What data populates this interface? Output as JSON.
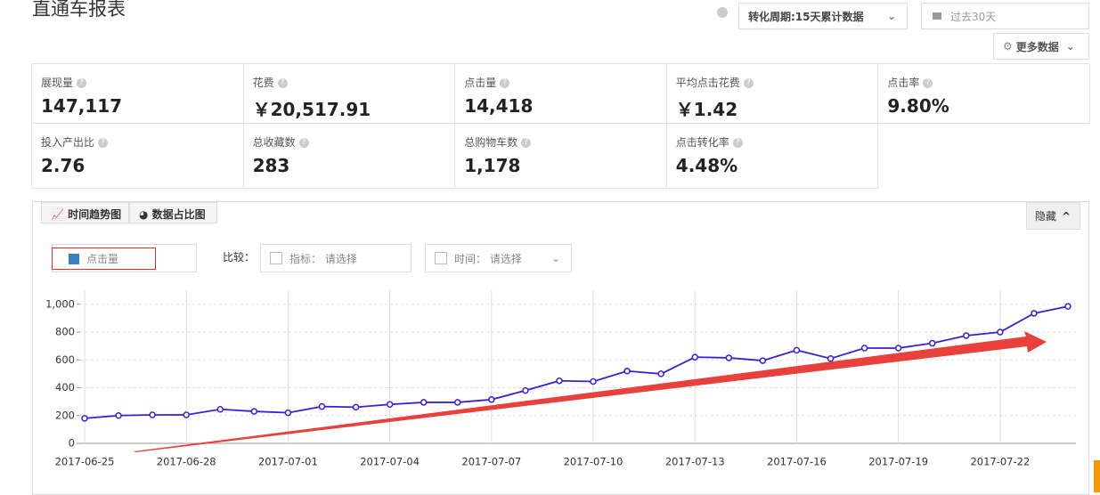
{
  "header": {
    "title": "直通车报表",
    "conversion_period": "转化周期:15天累计数据",
    "date_range": "过去30天",
    "more_data": "更多数据"
  },
  "metrics": [
    {
      "label": "展现量",
      "value": "147,117"
    },
    {
      "label": "花费",
      "value": "￥20,517.91"
    },
    {
      "label": "点击量",
      "value": "14,418"
    },
    {
      "label": "平均点击花费",
      "value": "￥1.42"
    },
    {
      "label": "点击率",
      "value": "9.80%"
    },
    {
      "label": "投入产出比",
      "value": "2.76"
    },
    {
      "label": "总收藏数",
      "value": "283"
    },
    {
      "label": "总购物车数",
      "value": "1,178"
    },
    {
      "label": "点击转化率",
      "value": "4.48%"
    }
  ],
  "tabs": [
    "时间趋势图",
    "数据占比图"
  ],
  "hide_button": "隐藏",
  "compare": {
    "label": "比较：",
    "metric_label": "指标：",
    "metric_placeholder": "请选择",
    "time_label": "时间：",
    "time_placeholder": "请选择"
  },
  "chart_data": {
    "type": "line",
    "categories": [
      "2017-06-25",
      null,
      null,
      "2017-06-28",
      null,
      null,
      "2017-07-01",
      null,
      null,
      "2017-07-04",
      null,
      null,
      "2017-07-07",
      null,
      null,
      "2017-07-10",
      null,
      null,
      "2017-07-13",
      null,
      null,
      "2017-07-16",
      null,
      null,
      "2017-07-19",
      null,
      null,
      "2017-07-22",
      null,
      null
    ],
    "series": [
      {
        "name": "点击量",
        "color": "#3a1fd8",
        "legend_color": "#3d7fc4",
        "values": [
          180,
          200,
          205,
          205,
          245,
          230,
          220,
          265,
          260,
          280,
          295,
          295,
          315,
          380,
          450,
          445,
          520,
          500,
          620,
          615,
          595,
          670,
          610,
          685,
          685,
          720,
          775,
          800,
          935,
          985
        ]
      }
    ],
    "ylim": [
      0,
      1050
    ],
    "yticks": [
      0,
      200,
      400,
      600,
      800,
      {
        "value": 1000,
        "label": "1,000"
      }
    ],
    "grid": true
  }
}
